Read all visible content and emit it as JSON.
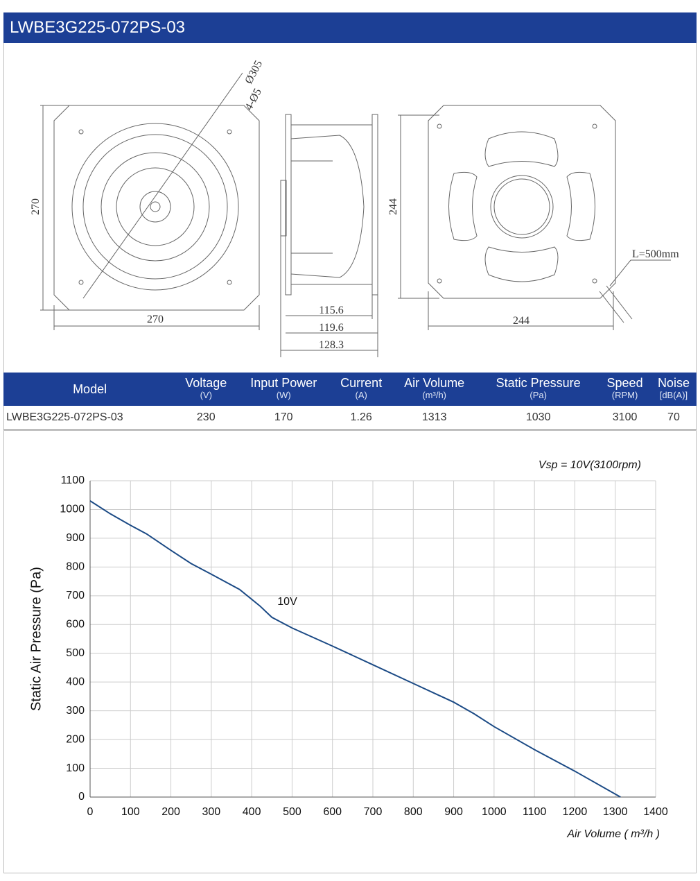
{
  "header": {
    "title": "LWBE3G225-072PS-03"
  },
  "drawing": {
    "labels": [
      "Ø305",
      "4-Ø5",
      "270",
      "270",
      "115.6",
      "119.6",
      "128.3",
      "244",
      "244",
      "L=500mm"
    ]
  },
  "table": {
    "columns": [
      {
        "name": "Model"
      },
      {
        "name": "Voltage",
        "unit": "(V)"
      },
      {
        "name": "Input Power",
        "unit": "(W)"
      },
      {
        "name": "Current",
        "unit": "(A)"
      },
      {
        "name": "Air Volume",
        "unit": "(m³/h)"
      },
      {
        "name": "Static Pressure",
        "unit": "(Pa)"
      },
      {
        "name": "Speed",
        "unit": "(RPM)"
      },
      {
        "name": "Noise",
        "unit": "[dB(A)]"
      }
    ],
    "rows": [
      [
        "LWBE3G225-072PS-03",
        "230",
        "170",
        "1.26",
        "1313",
        "1030",
        "3100",
        "70"
      ]
    ]
  },
  "chart_data": {
    "type": "line",
    "subtitle": "Vsp = 10V(3100rpm)",
    "x_label": "Air Volume ( m³/h )",
    "y_label": "Static Air Pressure  (Pa)",
    "x": [
      0,
      50,
      100,
      140,
      200,
      250,
      300,
      370,
      420,
      450,
      500,
      600,
      700,
      800,
      900,
      950,
      1000,
      1100,
      1200,
      1313
    ],
    "series": [
      {
        "name": "10V",
        "color": "#1b4a85",
        "values": [
          1030,
          985,
          945,
          915,
          858,
          812,
          775,
          722,
          665,
          625,
          588,
          525,
          460,
          395,
          330,
          290,
          245,
          165,
          90,
          0
        ]
      }
    ],
    "xlim": [
      0,
      1400
    ],
    "ylim": [
      0,
      1100
    ],
    "xticks": [
      0,
      100,
      200,
      300,
      400,
      500,
      600,
      700,
      800,
      900,
      1000,
      1100,
      1200,
      1300,
      1400
    ],
    "yticks": [
      0,
      100,
      200,
      300,
      400,
      500,
      600,
      700,
      800,
      900,
      1000,
      1100
    ],
    "grid": true
  }
}
